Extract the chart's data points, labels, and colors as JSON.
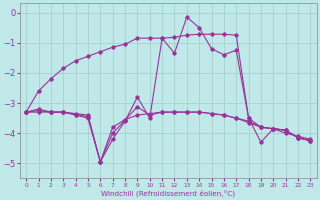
{
  "xlabel": "Windchill (Refroidissement éolien,°C)",
  "bg_color": "#c0e8e8",
  "grid_color": "#a0cccc",
  "line_color": "#993399",
  "xlim": [
    -0.5,
    23.5
  ],
  "ylim": [
    -5.5,
    0.3
  ],
  "yticks": [
    0,
    -1,
    -2,
    -3,
    -4,
    -5
  ],
  "xticks": [
    0,
    1,
    2,
    3,
    4,
    5,
    6,
    7,
    8,
    9,
    10,
    11,
    12,
    13,
    14,
    15,
    16,
    17,
    18,
    19,
    20,
    21,
    22,
    23
  ],
  "line1_x": [
    0,
    1,
    2,
    3,
    4,
    5,
    6,
    7,
    8,
    9,
    10,
    11,
    12,
    13,
    14,
    15,
    16,
    17,
    18,
    19,
    20,
    21,
    22,
    23
  ],
  "line1_y": [
    -3.3,
    -2.6,
    -2.2,
    -1.85,
    -1.6,
    -1.45,
    -1.3,
    -1.15,
    -1.05,
    -0.85,
    -0.85,
    -0.85,
    -0.82,
    -0.75,
    -0.72,
    -0.72,
    -0.72,
    -0.75,
    -3.5,
    -3.8,
    -3.85,
    -4.0,
    -4.1,
    -4.2
  ],
  "line2_x": [
    0,
    1,
    2,
    3,
    4,
    5,
    6,
    7,
    8,
    9,
    10,
    11,
    12,
    13,
    14,
    15,
    16,
    17,
    18,
    19,
    20,
    21,
    22,
    23
  ],
  "line2_y": [
    -3.3,
    -3.3,
    -3.3,
    -3.3,
    -3.35,
    -3.4,
    -4.95,
    -3.8,
    -3.55,
    -3.4,
    -3.35,
    -3.3,
    -3.3,
    -3.3,
    -3.3,
    -3.35,
    -3.4,
    -3.5,
    -3.65,
    -3.8,
    -3.85,
    -3.9,
    -4.15,
    -4.25
  ],
  "line3_x": [
    0,
    1,
    2,
    3,
    4,
    5,
    6,
    7,
    8,
    9,
    10,
    11,
    12,
    13,
    14,
    15,
    16,
    17,
    18,
    19,
    20,
    21,
    22,
    23
  ],
  "line3_y": [
    -3.3,
    -3.2,
    -3.3,
    -3.3,
    -3.4,
    -3.5,
    -4.95,
    -4.2,
    -3.6,
    -2.8,
    -3.5,
    -0.85,
    -1.35,
    -0.15,
    -0.5,
    -1.2,
    -1.4,
    -1.25,
    -3.5,
    -4.3,
    -3.85,
    -3.9,
    -4.15,
    -4.25
  ],
  "line4_x": [
    0,
    1,
    2,
    3,
    4,
    5,
    6,
    7,
    8,
    9,
    10,
    11,
    12,
    13,
    14,
    15,
    16,
    17,
    18,
    19,
    20,
    21,
    22,
    23
  ],
  "line4_y": [
    -3.3,
    -3.25,
    -3.3,
    -3.3,
    -3.38,
    -3.45,
    -4.95,
    -4.0,
    -3.57,
    -3.12,
    -3.4,
    -3.3,
    -3.3,
    -3.3,
    -3.3,
    -3.35,
    -3.4,
    -3.5,
    -3.6,
    -3.8,
    -3.85,
    -3.9,
    -4.15,
    -4.25
  ]
}
